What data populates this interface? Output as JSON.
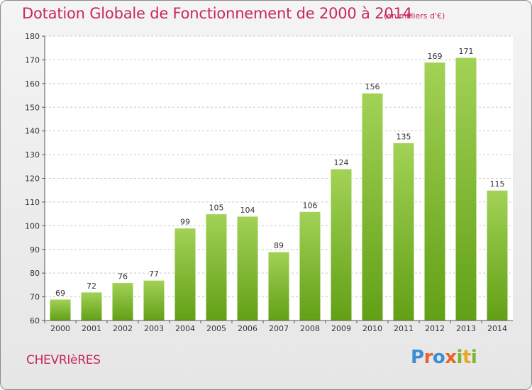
{
  "header": {
    "title": "Dotation Globale de Fonctionnement de 2000 à 2014",
    "subtitle": "(en milliers d'€)"
  },
  "footer": {
    "town": "CHEVRIèRES",
    "logo_text": "Proxiti",
    "logo_colors": [
      "#3a8fd4",
      "#e8622a",
      "#3a8fd4",
      "#e8622a",
      "#7ab52a",
      "#e8a52a",
      "#7ab52a"
    ]
  },
  "chart_data": {
    "type": "bar",
    "categories": [
      "2000",
      "2001",
      "2002",
      "2003",
      "2004",
      "2005",
      "2006",
      "2007",
      "2008",
      "2009",
      "2010",
      "2011",
      "2012",
      "2013",
      "2014"
    ],
    "values": [
      69,
      72,
      76,
      77,
      99,
      105,
      104,
      89,
      106,
      124,
      156,
      135,
      169,
      171,
      115
    ],
    "title": "Dotation Globale de Fonctionnement de 2000 à 2014",
    "subtitle": "(en milliers d'€)",
    "xlabel": "",
    "ylabel": "",
    "ylim": [
      60,
      180
    ],
    "yticks": [
      60,
      70,
      80,
      90,
      100,
      110,
      120,
      130,
      140,
      150,
      160,
      170,
      180
    ],
    "grid": true,
    "bar_color": "#8cc43c"
  }
}
